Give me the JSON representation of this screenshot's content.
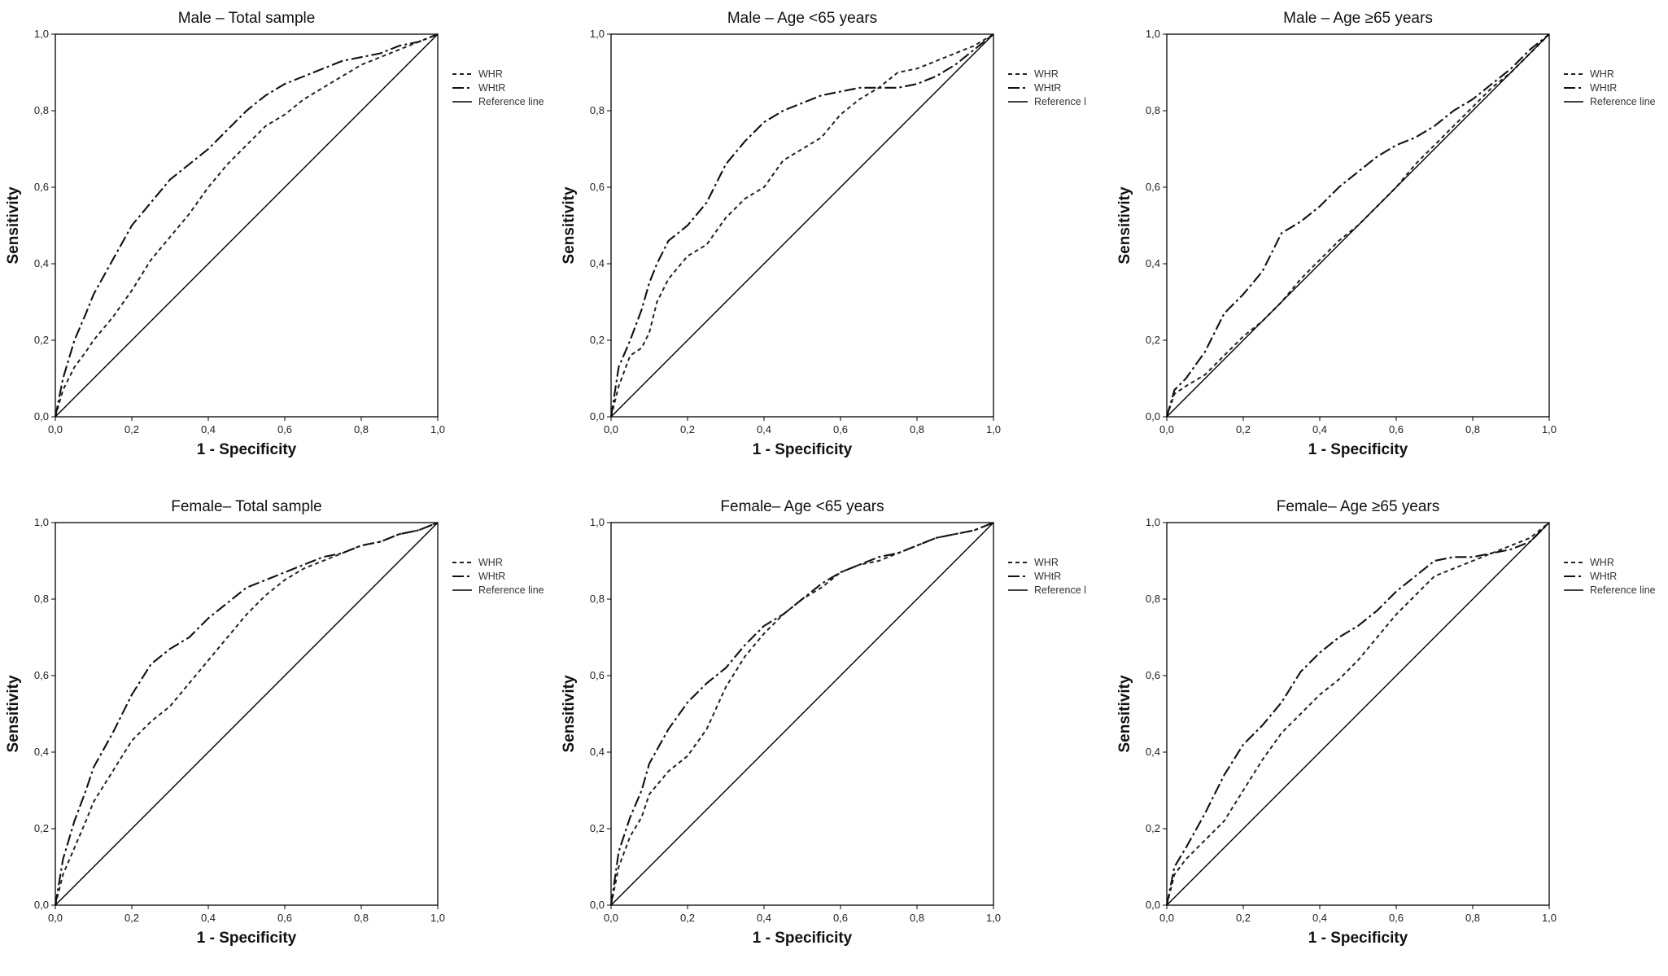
{
  "chart_data": [
    {
      "type": "line",
      "title": "Male – Total sample",
      "xlabel": "1 - Specificity",
      "ylabel": "Sensitivity",
      "xlim": [
        0,
        1
      ],
      "ylim": [
        0,
        1
      ],
      "ticks": [
        "0,0",
        "0,2",
        "0,4",
        "0,6",
        "0,8",
        "1,0"
      ],
      "legend_position": "right",
      "legend": [
        "WHR",
        "WHtR",
        "Reference line"
      ],
      "series": [
        {
          "name": "WHR",
          "x": [
            0,
            0.02,
            0.05,
            0.08,
            0.1,
            0.15,
            0.2,
            0.25,
            0.3,
            0.35,
            0.4,
            0.45,
            0.5,
            0.55,
            0.6,
            0.65,
            0.7,
            0.75,
            0.8,
            0.85,
            0.9,
            0.95,
            1.0
          ],
          "y": [
            0,
            0.07,
            0.13,
            0.17,
            0.2,
            0.26,
            0.33,
            0.41,
            0.47,
            0.53,
            0.6,
            0.66,
            0.71,
            0.76,
            0.79,
            0.83,
            0.86,
            0.89,
            0.92,
            0.94,
            0.96,
            0.98,
            1.0
          ]
        },
        {
          "name": "WHtR",
          "x": [
            0,
            0.02,
            0.05,
            0.08,
            0.1,
            0.15,
            0.2,
            0.25,
            0.3,
            0.35,
            0.4,
            0.45,
            0.5,
            0.55,
            0.6,
            0.65,
            0.7,
            0.75,
            0.8,
            0.85,
            0.9,
            0.95,
            1.0
          ],
          "y": [
            0,
            0.1,
            0.2,
            0.27,
            0.32,
            0.41,
            0.5,
            0.56,
            0.62,
            0.66,
            0.7,
            0.75,
            0.8,
            0.84,
            0.87,
            0.89,
            0.91,
            0.93,
            0.94,
            0.95,
            0.97,
            0.98,
            1.0
          ]
        },
        {
          "name": "Reference line",
          "x": [
            0,
            1
          ],
          "y": [
            0,
            1
          ]
        }
      ]
    },
    {
      "type": "line",
      "title": "Male – Age <65 years",
      "xlabel": "1 - Specificity",
      "ylabel": "Sensitivity",
      "xlim": [
        0,
        1
      ],
      "ylim": [
        0,
        1
      ],
      "ticks": [
        "0,0",
        "0,2",
        "0,4",
        "0,6",
        "0,8",
        "1,0"
      ],
      "legend_position": "right",
      "legend": [
        "WHR",
        "WHtR",
        "Reference l"
      ],
      "series": [
        {
          "name": "WHR",
          "x": [
            0,
            0.02,
            0.05,
            0.08,
            0.1,
            0.12,
            0.15,
            0.2,
            0.25,
            0.3,
            0.35,
            0.4,
            0.45,
            0.5,
            0.55,
            0.6,
            0.65,
            0.7,
            0.75,
            0.8,
            0.85,
            0.9,
            0.95,
            1.0
          ],
          "y": [
            0,
            0.08,
            0.16,
            0.18,
            0.22,
            0.3,
            0.36,
            0.42,
            0.45,
            0.52,
            0.57,
            0.6,
            0.67,
            0.7,
            0.73,
            0.79,
            0.83,
            0.86,
            0.9,
            0.91,
            0.93,
            0.95,
            0.97,
            1.0
          ]
        },
        {
          "name": "WHtR",
          "x": [
            0,
            0.02,
            0.05,
            0.08,
            0.1,
            0.12,
            0.15,
            0.2,
            0.25,
            0.3,
            0.35,
            0.4,
            0.45,
            0.5,
            0.55,
            0.6,
            0.65,
            0.7,
            0.75,
            0.8,
            0.85,
            0.9,
            0.95,
            1.0
          ],
          "y": [
            0,
            0.13,
            0.2,
            0.28,
            0.35,
            0.4,
            0.46,
            0.5,
            0.56,
            0.66,
            0.72,
            0.77,
            0.8,
            0.82,
            0.84,
            0.85,
            0.86,
            0.86,
            0.86,
            0.87,
            0.89,
            0.92,
            0.96,
            1.0
          ]
        },
        {
          "name": "Reference l",
          "x": [
            0,
            1
          ],
          "y": [
            0,
            1
          ]
        }
      ]
    },
    {
      "type": "line",
      "title": "Male – Age ≥65 years",
      "xlabel": "1 - Specificity",
      "ylabel": "Sensitivity",
      "xlim": [
        0,
        1
      ],
      "ylim": [
        0,
        1
      ],
      "ticks": [
        "0,0",
        "0,2",
        "0,4",
        "0,6",
        "0,8",
        "1,0"
      ],
      "legend_position": "right",
      "legend": [
        "WHR",
        "WHtR",
        "Reference line"
      ],
      "series": [
        {
          "name": "WHR",
          "x": [
            0,
            0.02,
            0.05,
            0.1,
            0.15,
            0.2,
            0.25,
            0.3,
            0.35,
            0.4,
            0.45,
            0.5,
            0.55,
            0.6,
            0.65,
            0.7,
            0.75,
            0.8,
            0.85,
            0.9,
            0.95,
            1.0
          ],
          "y": [
            0,
            0.06,
            0.08,
            0.11,
            0.16,
            0.21,
            0.25,
            0.3,
            0.36,
            0.41,
            0.46,
            0.5,
            0.55,
            0.6,
            0.66,
            0.71,
            0.76,
            0.81,
            0.86,
            0.9,
            0.95,
            1.0
          ]
        },
        {
          "name": "WHtR",
          "x": [
            0,
            0.02,
            0.05,
            0.1,
            0.15,
            0.2,
            0.25,
            0.3,
            0.35,
            0.4,
            0.45,
            0.5,
            0.55,
            0.6,
            0.65,
            0.7,
            0.75,
            0.8,
            0.85,
            0.9,
            0.95,
            1.0
          ],
          "y": [
            0,
            0.07,
            0.1,
            0.17,
            0.27,
            0.32,
            0.38,
            0.48,
            0.51,
            0.55,
            0.6,
            0.64,
            0.68,
            0.71,
            0.73,
            0.76,
            0.8,
            0.83,
            0.87,
            0.91,
            0.96,
            1.0
          ]
        },
        {
          "name": "Reference line",
          "x": [
            0,
            1
          ],
          "y": [
            0,
            1
          ]
        }
      ]
    },
    {
      "type": "line",
      "title": "Female– Total sample",
      "xlabel": "1 - Specificity",
      "ylabel": "Sensitivity",
      "xlim": [
        0,
        1
      ],
      "ylim": [
        0,
        1
      ],
      "ticks": [
        "0,0",
        "0,2",
        "0,4",
        "0,6",
        "0,8",
        "1,0"
      ],
      "legend_position": "right",
      "legend": [
        "WHR",
        "WHtR",
        "Reference line"
      ],
      "series": [
        {
          "name": "WHR",
          "x": [
            0,
            0.02,
            0.05,
            0.08,
            0.1,
            0.15,
            0.2,
            0.25,
            0.3,
            0.35,
            0.4,
            0.45,
            0.5,
            0.55,
            0.6,
            0.65,
            0.7,
            0.75,
            0.8,
            0.85,
            0.9,
            0.95,
            1.0
          ],
          "y": [
            0,
            0.08,
            0.15,
            0.22,
            0.27,
            0.35,
            0.43,
            0.48,
            0.52,
            0.58,
            0.64,
            0.7,
            0.76,
            0.81,
            0.85,
            0.88,
            0.9,
            0.92,
            0.94,
            0.95,
            0.97,
            0.98,
            1.0
          ]
        },
        {
          "name": "WHtR",
          "x": [
            0,
            0.02,
            0.05,
            0.08,
            0.1,
            0.15,
            0.2,
            0.25,
            0.3,
            0.35,
            0.4,
            0.45,
            0.5,
            0.55,
            0.6,
            0.65,
            0.7,
            0.75,
            0.8,
            0.85,
            0.9,
            0.95,
            1.0
          ],
          "y": [
            0,
            0.12,
            0.22,
            0.3,
            0.36,
            0.45,
            0.55,
            0.63,
            0.67,
            0.7,
            0.75,
            0.79,
            0.83,
            0.85,
            0.87,
            0.89,
            0.91,
            0.92,
            0.94,
            0.95,
            0.97,
            0.98,
            1.0
          ]
        },
        {
          "name": "Reference line",
          "x": [
            0,
            1
          ],
          "y": [
            0,
            1
          ]
        }
      ]
    },
    {
      "type": "line",
      "title": "Female– Age <65 years",
      "xlabel": "1 - Specificity",
      "ylabel": "Sensitivity",
      "xlim": [
        0,
        1
      ],
      "ylim": [
        0,
        1
      ],
      "ticks": [
        "0,0",
        "0,2",
        "0,4",
        "0,6",
        "0,8",
        "1,0"
      ],
      "legend_position": "right",
      "legend": [
        "WHR",
        "WHtR",
        "Reference l"
      ],
      "series": [
        {
          "name": "WHR",
          "x": [
            0,
            0.02,
            0.05,
            0.08,
            0.1,
            0.15,
            0.2,
            0.25,
            0.3,
            0.35,
            0.4,
            0.45,
            0.5,
            0.55,
            0.6,
            0.65,
            0.7,
            0.75,
            0.8,
            0.85,
            0.9,
            0.95,
            1.0
          ],
          "y": [
            0,
            0.1,
            0.18,
            0.23,
            0.29,
            0.35,
            0.39,
            0.46,
            0.57,
            0.65,
            0.71,
            0.76,
            0.8,
            0.83,
            0.87,
            0.89,
            0.9,
            0.92,
            0.94,
            0.96,
            0.97,
            0.98,
            1.0
          ]
        },
        {
          "name": "WHtR",
          "x": [
            0,
            0.02,
            0.05,
            0.08,
            0.1,
            0.15,
            0.2,
            0.25,
            0.3,
            0.35,
            0.4,
            0.45,
            0.5,
            0.55,
            0.6,
            0.65,
            0.7,
            0.75,
            0.8,
            0.85,
            0.9,
            0.95,
            1.0
          ],
          "y": [
            0,
            0.14,
            0.23,
            0.3,
            0.37,
            0.46,
            0.53,
            0.58,
            0.62,
            0.68,
            0.73,
            0.76,
            0.8,
            0.84,
            0.87,
            0.89,
            0.91,
            0.92,
            0.94,
            0.96,
            0.97,
            0.98,
            1.0
          ]
        },
        {
          "name": "Reference l",
          "x": [
            0,
            1
          ],
          "y": [
            0,
            1
          ]
        }
      ]
    },
    {
      "type": "line",
      "title": "Female– Age ≥65 years",
      "xlabel": "1 - Specificity",
      "ylabel": "Sensitivity",
      "xlim": [
        0,
        1
      ],
      "ylim": [
        0,
        1
      ],
      "ticks": [
        "0,0",
        "0,2",
        "0,4",
        "0,6",
        "0,8",
        "1,0"
      ],
      "legend_position": "right",
      "legend": [
        "WHR",
        "WHtR",
        "Reference line"
      ],
      "series": [
        {
          "name": "WHR",
          "x": [
            0,
            0.02,
            0.05,
            0.1,
            0.15,
            0.2,
            0.25,
            0.3,
            0.35,
            0.4,
            0.45,
            0.5,
            0.55,
            0.6,
            0.65,
            0.7,
            0.75,
            0.8,
            0.85,
            0.9,
            0.95,
            1.0
          ],
          "y": [
            0,
            0.08,
            0.12,
            0.17,
            0.22,
            0.3,
            0.38,
            0.45,
            0.5,
            0.55,
            0.59,
            0.64,
            0.7,
            0.76,
            0.81,
            0.86,
            0.88,
            0.9,
            0.92,
            0.94,
            0.96,
            1.0
          ]
        },
        {
          "name": "WHtR",
          "x": [
            0,
            0.02,
            0.05,
            0.1,
            0.15,
            0.2,
            0.25,
            0.3,
            0.35,
            0.4,
            0.45,
            0.5,
            0.55,
            0.6,
            0.65,
            0.7,
            0.75,
            0.8,
            0.85,
            0.9,
            0.95,
            1.0
          ],
          "y": [
            0,
            0.1,
            0.15,
            0.24,
            0.34,
            0.42,
            0.47,
            0.53,
            0.61,
            0.66,
            0.7,
            0.73,
            0.77,
            0.82,
            0.86,
            0.9,
            0.91,
            0.91,
            0.92,
            0.93,
            0.95,
            1.0
          ]
        },
        {
          "name": "Reference line",
          "x": [
            0,
            1
          ],
          "y": [
            0,
            1
          ]
        }
      ]
    }
  ]
}
